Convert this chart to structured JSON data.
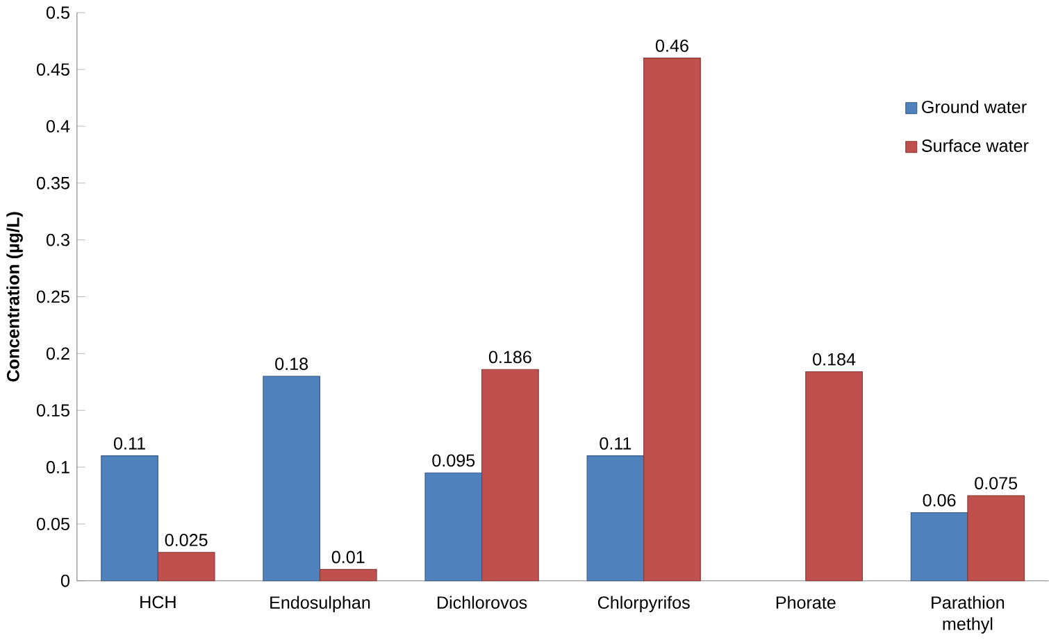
{
  "chart_data": {
    "type": "bar",
    "ylabel": "Concentration (µg/L)",
    "categories": [
      "HCH",
      "Endosulphan",
      "Dichlorovos",
      "Chlorpyrifos",
      "Phorate",
      "Parathion methyl"
    ],
    "series": [
      {
        "name": "Ground water",
        "color": "#4f81bd",
        "values": [
          0.11,
          0.18,
          0.095,
          0.11,
          null,
          0.06
        ],
        "value_labels": [
          "0.11",
          "0.18",
          "0.095",
          "0.11",
          null,
          "0.06"
        ]
      },
      {
        "name": "Surface water",
        "color": "#c0504d",
        "values": [
          0.025,
          0.01,
          0.186,
          0.46,
          0.184,
          0.075
        ],
        "value_labels": [
          "0.025",
          "0.01",
          "0.186",
          "0.46",
          "0.184",
          "0.075"
        ]
      }
    ],
    "ylim": [
      0,
      0.5
    ],
    "yticks": [
      0,
      0.05,
      0.1,
      0.15,
      0.2,
      0.25,
      0.3,
      0.35,
      0.4,
      0.45,
      0.5
    ],
    "grid": false,
    "legend": "top right"
  }
}
